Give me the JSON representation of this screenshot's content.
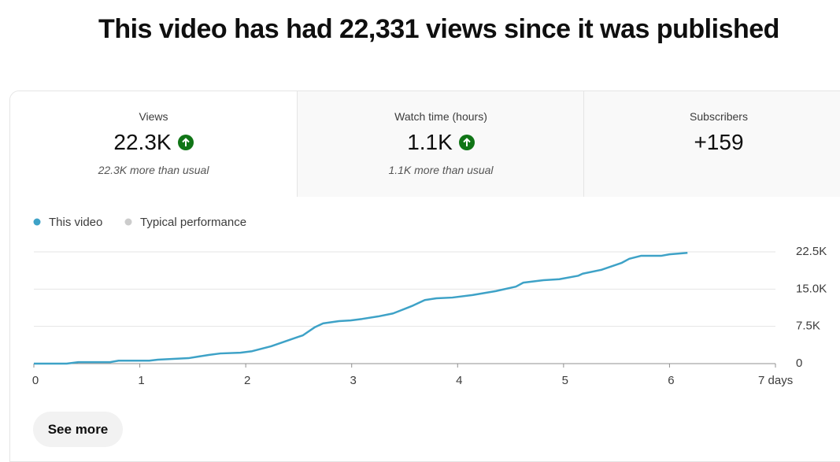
{
  "header": {
    "title": "This video has had 22,331 views since it was published"
  },
  "tabs": [
    {
      "label": "Views",
      "value": "22.3K",
      "note": "22.3K more than usual"
    },
    {
      "label": "Watch time (hours)",
      "value": "1.1K",
      "note": "1.1K more than usual"
    },
    {
      "label": "Subscribers",
      "value": "+159"
    }
  ],
  "chart_data": {
    "type": "line",
    "series": [
      {
        "name": "This video",
        "color": "#3ea2c7",
        "x": [
          0,
          0.31,
          0.42,
          0.72,
          0.8,
          1.09,
          1.17,
          1.46,
          1.65,
          1.76,
          1.95,
          2.06,
          2.24,
          2.43,
          2.54,
          2.65,
          2.73,
          2.88,
          2.99,
          3.1,
          3.25,
          3.39,
          3.51,
          3.58,
          3.69,
          3.8,
          3.95,
          4.14,
          4.36,
          4.55,
          4.62,
          4.81,
          4.96,
          5.14,
          5.18,
          5.36,
          5.55,
          5.62,
          5.73,
          5.92,
          6.0,
          6.17
        ],
        "values": [
          0,
          0,
          300,
          300,
          600,
          600,
          800,
          1100,
          1750,
          2050,
          2200,
          2500,
          3500,
          4900,
          5700,
          7300,
          8100,
          8550,
          8700,
          9000,
          9500,
          10100,
          11100,
          11700,
          12800,
          13150,
          13300,
          13800,
          14600,
          15500,
          16300,
          16800,
          17000,
          17700,
          18100,
          18900,
          20300,
          21100,
          21700,
          21700,
          22000,
          22300
        ]
      },
      {
        "name": "Typical performance",
        "color": "#cccccc"
      }
    ],
    "xlim": [
      0,
      7
    ],
    "xticks": [
      0,
      1,
      2,
      3,
      4,
      5,
      6,
      {
        "value": 7,
        "label": "7 days"
      }
    ],
    "ylim": [
      0,
      22500
    ],
    "yticks": [
      0,
      {
        "value": 7500,
        "label": "7.5K"
      },
      {
        "value": 15000,
        "label": "15.0K"
      },
      {
        "value": 22500,
        "label": "22.5K"
      }
    ],
    "grid": true
  },
  "button": {
    "label": "See more"
  }
}
